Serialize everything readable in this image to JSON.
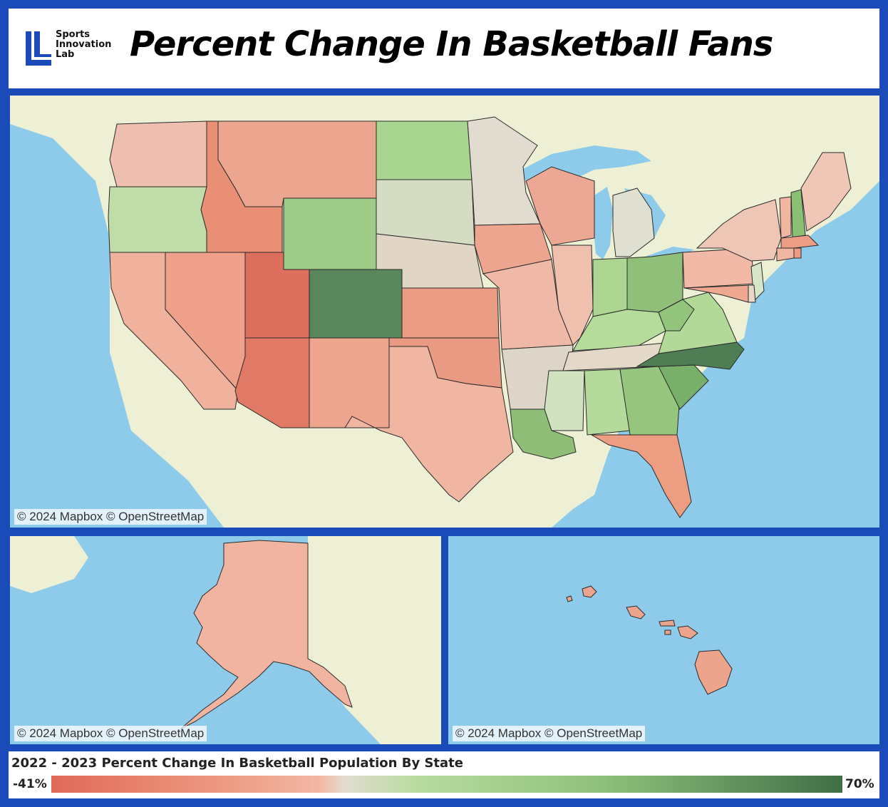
{
  "header": {
    "logo_text": [
      "Sports",
      "Innovation",
      "Lab"
    ],
    "title": "Percent Change In Basketball Fans"
  },
  "maps": {
    "credit": "© 2024 Mapbox © OpenStreetMap",
    "panels": [
      "contiguous-us",
      "alaska",
      "hawaii"
    ]
  },
  "legend": {
    "title": "2022 - 2023 Percent Change In Basketball Population By State",
    "min_label": "-41%",
    "max_label": "70%",
    "color_low": "#e06a58",
    "color_mid": "#e3dcd0",
    "color_high": "#3f6e45"
  },
  "colors": {
    "border_blue": "#1a4bb8",
    "water": "#8ecbeb",
    "land": "#eef0d6"
  }
}
